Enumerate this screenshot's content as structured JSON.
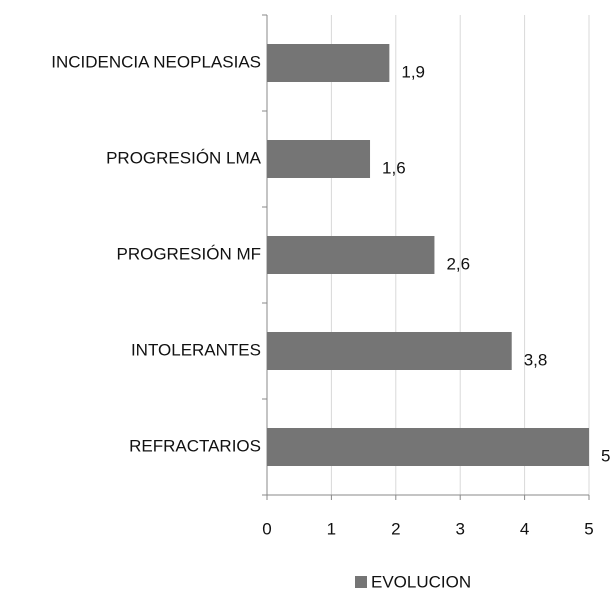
{
  "chart_data": {
    "type": "barh",
    "categories": [
      "INCIDENCIA NEOPLASIAS",
      "PROGRESIÓN LMA",
      "PROGRESIÓN MF",
      "INTOLERANTES",
      "REFRACTARIOS"
    ],
    "series": [
      {
        "name": "EVOLUCION",
        "color": "#757575",
        "values": [
          1.9,
          1.6,
          2.6,
          3.8,
          5
        ],
        "value_labels": [
          "1,9",
          "1,6",
          "2,6",
          "3,8",
          "5"
        ]
      }
    ],
    "xlim": [
      0,
      5
    ],
    "xticks": [
      0,
      1,
      2,
      3,
      4,
      5
    ],
    "grid": true,
    "legend": "bottom"
  }
}
